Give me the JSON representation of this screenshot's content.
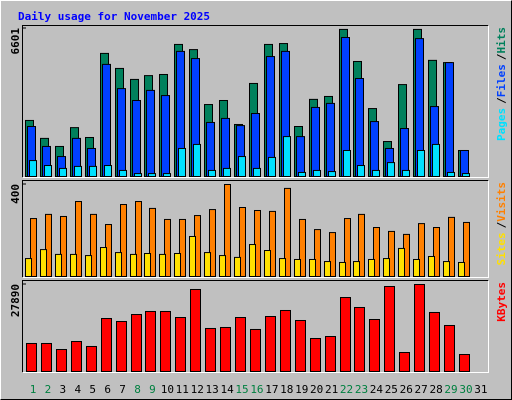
{
  "chart_data": {
    "title": "Daily usage for November 2025",
    "legend_separator": "/",
    "categories": [
      "1",
      "2",
      "3",
      "4",
      "5",
      "6",
      "7",
      "8",
      "9",
      "10",
      "11",
      "12",
      "13",
      "14",
      "15",
      "16",
      "17",
      "18",
      "19",
      "20",
      "21",
      "22",
      "23",
      "24",
      "25",
      "26",
      "27",
      "28",
      "29",
      "30",
      "31"
    ],
    "category_colors": [
      "#008040",
      "#008040",
      "#000000",
      "#000000",
      "#000000",
      "#000000",
      "#000000",
      "#008040",
      "#008040",
      "#000000",
      "#000000",
      "#000000",
      "#000000",
      "#000000",
      "#008040",
      "#008040",
      "#000000",
      "#000000",
      "#000000",
      "#000000",
      "#000000",
      "#008040",
      "#008040",
      "#000000",
      "#000000",
      "#000000",
      "#000000",
      "#000000",
      "#008040",
      "#008040",
      "#000000"
    ],
    "panels": [
      {
        "type": "bar",
        "ylim": [
          0,
          6601
        ],
        "yticks": [
          6601
        ],
        "series": [
          {
            "name": "Hits",
            "color": "#00805c",
            "values": [
              2500,
              1700,
              1340,
              2180,
              1740,
              5490,
              4820,
              4330,
              4500,
              4550,
              5890,
              5660,
              3210,
              3390,
              2320,
              4150,
              5890,
              5930,
              2230,
              3440,
              3570,
              6560,
              5130,
              3030,
              1560,
              4100,
              6560,
              5180,
              5080,
              1160,
              0
            ]
          },
          {
            "name": "Files",
            "color": "#0040ff",
            "values": [
              2230,
              1340,
              890,
              1700,
              1250,
              5000,
              3920,
              3390,
              3840,
              3610,
              5580,
              5260,
              2410,
              2590,
              2270,
              2810,
              5350,
              5580,
              1780,
              3080,
              3260,
              6200,
              4370,
              2450,
              1250,
              2140,
              6150,
              3120,
              5080,
              1160,
              0
            ]
          },
          {
            "name": "Pages",
            "color": "#00e0ff",
            "values": [
              710,
              490,
              360,
              450,
              450,
              490,
              270,
              130,
              130,
              130,
              1250,
              1430,
              270,
              360,
              890,
              360,
              850,
              1780,
              180,
              270,
              220,
              1160,
              490,
              270,
              620,
              270,
              1160,
              1430,
              180,
              130,
              0
            ]
          }
        ]
      },
      {
        "type": "bar",
        "ylim": [
          0,
          400
        ],
        "yticks": [
          400
        ],
        "series": [
          {
            "name": "Visits",
            "color": "#ff8000",
            "values": [
              252,
              270,
              261,
              326,
              270,
              226,
              313,
              326,
              296,
              248,
              248,
              265,
              291,
              400,
              300,
              287,
              283,
              383,
              248,
              204,
              191,
              252,
              270,
              213,
              196,
              183,
              230,
              213,
              257,
              235,
              0
            ]
          },
          {
            "name": "Sites",
            "color": "#ffe000",
            "values": [
              78,
              117,
              96,
              96,
              91,
              126,
              104,
              96,
              100,
              96,
              100,
              174,
              104,
              91,
              83,
              139,
              113,
              78,
              74,
              74,
              65,
              61,
              65,
              74,
              78,
              122,
              74,
              87,
              65,
              61,
              0
            ]
          }
        ]
      },
      {
        "type": "bar",
        "ylim": [
          0,
          27890
        ],
        "yticks": [
          27890
        ],
        "series": [
          {
            "name": "KBytes",
            "color": "#ff0000",
            "values": [
              8980,
              8980,
              7050,
              9620,
              8020,
              16990,
              16030,
              18270,
              19240,
              19240,
              17310,
              26290,
              13790,
              14110,
              17310,
              13470,
              17630,
              19560,
              16350,
              10580,
              11220,
              23720,
              20520,
              16670,
              27250,
              6090,
              27890,
              18920,
              14750,
              5450,
              0
            ]
          }
        ]
      }
    ]
  }
}
